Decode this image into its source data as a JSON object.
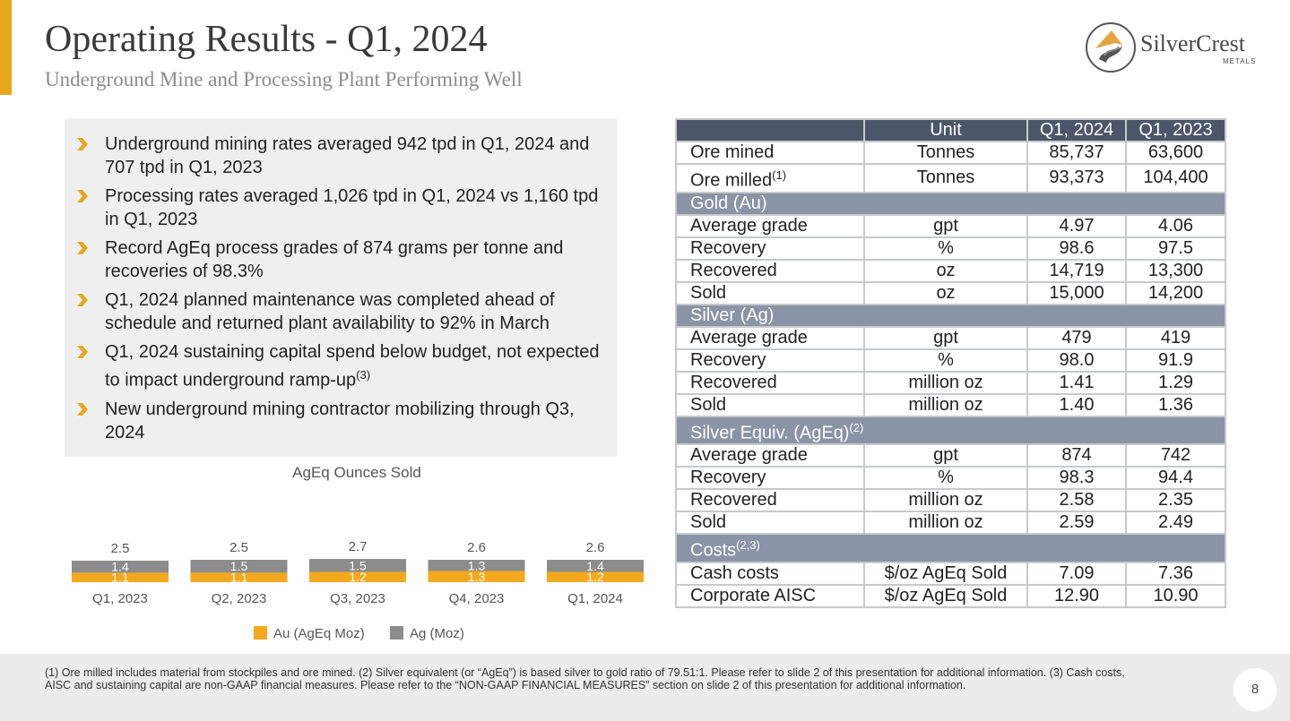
{
  "header": {
    "title": "Operating Results - Q1, 2024",
    "subtitle": "Underground Mine and Processing Plant Performing Well"
  },
  "logo": {
    "name": "SilverCrest",
    "tagline": "METALS"
  },
  "bullets": [
    {
      "text": "Underground mining rates averaged 942 tpd in Q1, 2024 and 707 tpd in Q1, 2023"
    },
    {
      "text": "Processing rates averaged 1,026 tpd in Q1, 2024 vs 1,160 tpd in Q1, 2023"
    },
    {
      "text": "Record AgEq process grades of 874 grams per tonne and recoveries of 98.3%"
    },
    {
      "text": "Q1, 2024 planned maintenance was completed ahead of schedule and returned plant availability to 92% in March"
    },
    {
      "text": "Q1, 2024 sustaining capital spend below budget, not expected to impact underground ramp-up",
      "sup": "(3)"
    },
    {
      "text": "New underground mining contractor mobilizing through Q3, 2024"
    }
  ],
  "chart_data": {
    "type": "bar",
    "stacked": true,
    "title": "AgEq Ounces Sold",
    "categories": [
      "Q1, 2023",
      "Q2, 2023",
      "Q3, 2023",
      "Q4, 2023",
      "Q1, 2024"
    ],
    "series": [
      {
        "name": "Au (AgEq Moz)",
        "color": "#f4a81d",
        "values": [
          1.1,
          1.1,
          1.2,
          1.3,
          1.2
        ]
      },
      {
        "name": "Ag (Moz)",
        "color": "#8c8c8c",
        "values": [
          1.4,
          1.5,
          1.5,
          1.3,
          1.4
        ]
      }
    ],
    "totals": [
      "2.5",
      "2.5",
      "2.7",
      "2.6",
      "2.6"
    ],
    "legend": "bottom"
  },
  "table": {
    "headers": [
      "",
      "Unit",
      "Q1, 2024",
      "Q1, 2023"
    ],
    "ore_rows": [
      {
        "metric": "Ore mined",
        "unit": "Tonnes",
        "q1_2024": "85,737",
        "q1_2023": "63,600"
      },
      {
        "metric": "Ore milled",
        "sup": "(1)",
        "unit": "Tonnes",
        "q1_2024": "93,373",
        "q1_2023": "104,400"
      }
    ],
    "gold": {
      "label": "Gold (Au)",
      "rows": [
        {
          "metric": "Average grade",
          "unit": "gpt",
          "q1_2024": "4.97",
          "q1_2023": "4.06"
        },
        {
          "metric": "Recovery",
          "unit": "%",
          "q1_2024": "98.6",
          "q1_2023": "97.5"
        },
        {
          "metric": "Recovered",
          "unit": "oz",
          "q1_2024": "14,719",
          "q1_2023": "13,300"
        },
        {
          "metric": "Sold",
          "unit": "oz",
          "q1_2024": "15,000",
          "q1_2023": "14,200"
        }
      ]
    },
    "silver": {
      "label": "Silver (Ag)",
      "rows": [
        {
          "metric": "Average grade",
          "unit": "gpt",
          "q1_2024": "479",
          "q1_2023": "419"
        },
        {
          "metric": "Recovery",
          "unit": "%",
          "q1_2024": "98.0",
          "q1_2023": "91.9"
        },
        {
          "metric": "Recovered",
          "unit": "million oz",
          "q1_2024": "1.41",
          "q1_2023": "1.29"
        },
        {
          "metric": "Sold",
          "unit": "million oz",
          "q1_2024": "1.40",
          "q1_2023": "1.36"
        }
      ]
    },
    "ageq": {
      "label": "Silver Equiv. (AgEq)",
      "sup": "(2)",
      "rows": [
        {
          "metric": "Average grade",
          "unit": "gpt",
          "q1_2024": "874",
          "q1_2023": "742"
        },
        {
          "metric": "Recovery",
          "unit": "%",
          "q1_2024": "98.3",
          "q1_2023": "94.4"
        },
        {
          "metric": "Recovered",
          "unit": "million oz",
          "q1_2024": "2.58",
          "q1_2023": "2.35"
        },
        {
          "metric": "Sold",
          "unit": "million oz",
          "q1_2024": "2.59",
          "q1_2023": "2.49"
        }
      ]
    },
    "costs": {
      "label": "Costs",
      "sup": "(2,3)",
      "rows": [
        {
          "metric": "Cash costs",
          "unit": "$/oz AgEq Sold",
          "q1_2024": "7.09",
          "q1_2023": "7.36"
        },
        {
          "metric": "Corporate AISC",
          "unit": "$/oz AgEq Sold",
          "q1_2024": "12.90",
          "q1_2023": "10.90"
        }
      ]
    }
  },
  "footer": {
    "footnote": "(1) Ore milled includes material from stockpiles and ore mined. (2) Silver equivalent (or “AgEq”) is based silver to gold ratio of 79.51:1. Please refer to slide 2 of this presentation for additional information. (3) Cash costs, AISC and sustaining capital are non-GAAP financial measures. Please refer to the “NON-GAAP FINANCIAL MEASURES” section on slide 2 of this presentation for additional information.",
    "page_number": "8"
  },
  "colors": {
    "accent": "#e8a81c",
    "gold": "#f4a81d",
    "silver": "#8c8c8c",
    "table_header": "#4b5669",
    "table_section": "#8a94a6"
  }
}
